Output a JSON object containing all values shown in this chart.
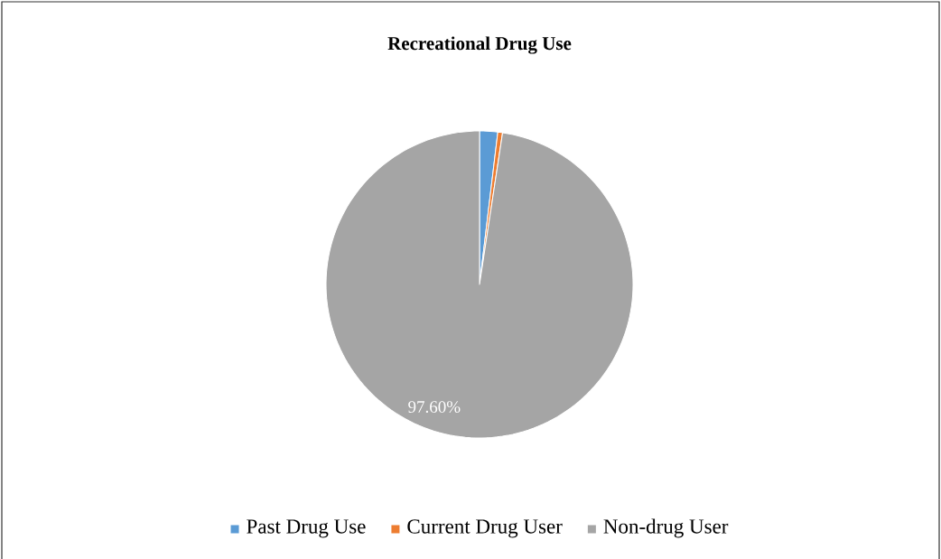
{
  "chart_data": {
    "type": "pie",
    "title": "Recreational Drug Use",
    "categories": [
      "Past Drug Use",
      "Current Drug User",
      "Non-drug User"
    ],
    "values": [
      1.9,
      0.5,
      97.6
    ],
    "colors": [
      "#5b9bd5",
      "#ed7d31",
      "#a5a5a5"
    ],
    "value_labels": [
      null,
      null,
      "97.60%"
    ],
    "legend": "bottom"
  }
}
